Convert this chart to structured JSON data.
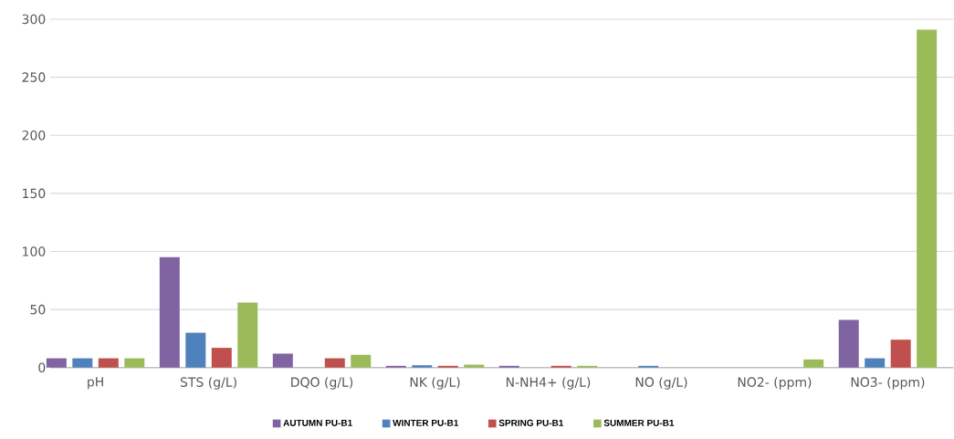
{
  "chart_data": {
    "type": "bar",
    "categories": [
      "pH",
      "STS (g/L)",
      "DQO (g/L)",
      "NK (g/L)",
      "N-NH4+ (g/L)",
      "NO (g/L)",
      "NO2- (ppm)",
      "NO3- (ppm)"
    ],
    "series": [
      {
        "name": "AUTUMN PU-B1",
        "color": "#8064a2",
        "values": [
          8,
          95,
          12,
          1.5,
          1.5,
          0,
          0,
          41
        ]
      },
      {
        "name": "WINTER PU-B1",
        "color": "#4f81bd",
        "values": [
          8,
          30,
          0,
          2,
          0,
          1.5,
          0,
          8
        ]
      },
      {
        "name": "SPRING PU-B1",
        "color": "#c0504d",
        "values": [
          8,
          17,
          8,
          1.5,
          1.5,
          0,
          0,
          24
        ]
      },
      {
        "name": "SUMMER PU-B1",
        "color": "#9bbb59",
        "values": [
          8,
          56,
          11,
          2.5,
          1.5,
          0,
          7,
          291
        ]
      }
    ],
    "ylim": [
      0,
      300
    ],
    "yticks": [
      0,
      50,
      100,
      150,
      200,
      250,
      300
    ],
    "grid": "y",
    "legend": "bottom"
  }
}
